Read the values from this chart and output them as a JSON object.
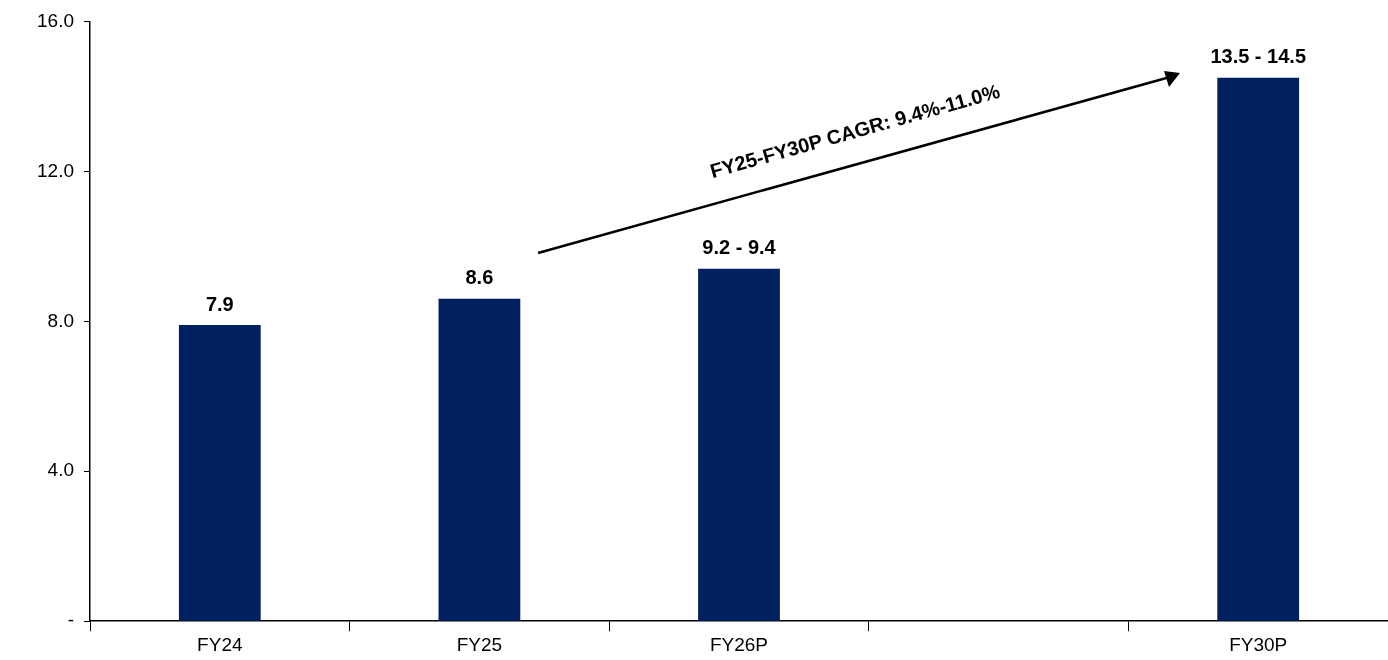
{
  "chart_data": {
    "type": "bar",
    "categories": [
      "FY24",
      "FY25",
      "FY26P",
      null,
      "FY30P"
    ],
    "values": [
      7.9,
      8.6,
      9.4,
      null,
      14.5
    ],
    "value_labels": [
      "7.9",
      "8.6",
      null,
      null,
      null
    ],
    "color": "#002060",
    "ylim": [
      0,
      16
    ],
    "yticks": [
      {
        "value": 0,
        "label": "-"
      },
      {
        "value": 4,
        "label": "4.0"
      },
      {
        "value": 8,
        "label": "8.0"
      },
      {
        "value": 12,
        "label": "12.0"
      },
      {
        "value": 16,
        "label": "16.0"
      }
    ],
    "grid": false,
    "legend": false,
    "annotations": [
      "FY25-FY30P CAGR: 9.4%-11.0%",
      {
        "text": "9.2 - 9.4",
        "x": "FY26P",
        "y": 9.4
      },
      {
        "text": "13.5 - 14.5",
        "x": "FY30P",
        "y": 14.5
      }
    ]
  }
}
